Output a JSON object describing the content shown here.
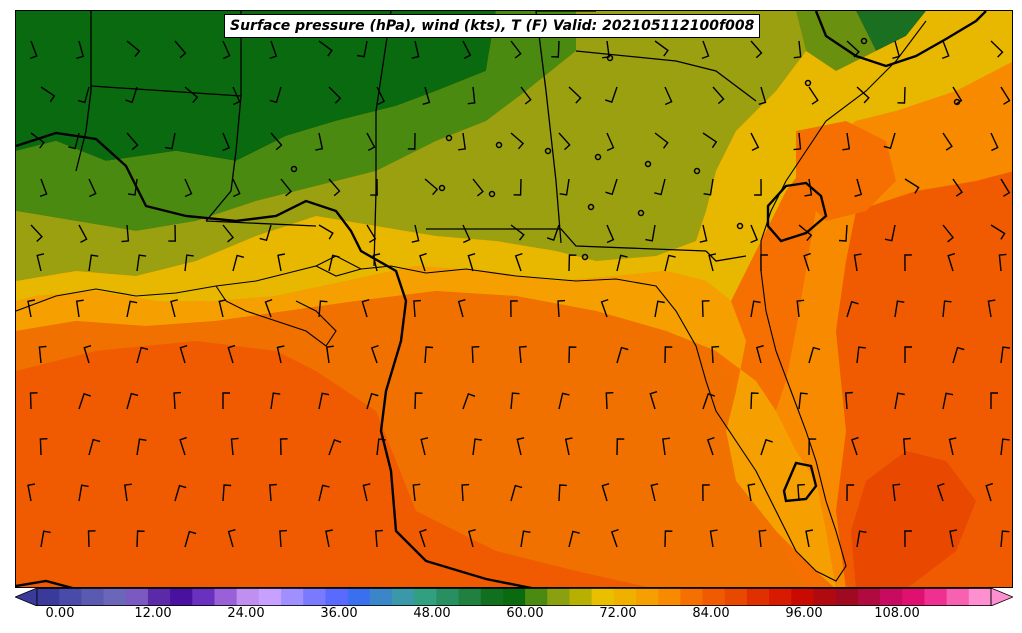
{
  "title": "Surface pressure (hPa), wind (kts), T (F) Valid: 202105112100f008",
  "colorbar": {
    "tick_labels": [
      "0.00",
      "12.00",
      "24.00",
      "36.00",
      "48.00",
      "60.00",
      "72.00",
      "84.00",
      "96.00",
      "108.00"
    ],
    "colors": [
      "#3a3a9a",
      "#4a4aa8",
      "#5a5ab0",
      "#6a66b8",
      "#7a5ac0",
      "#5a2aa8",
      "#4a10a0",
      "#6a30c0",
      "#9a60d8",
      "#c090f0",
      "#c8a0ff",
      "#a090ff",
      "#7a7aff",
      "#5a6aff",
      "#3a70f0",
      "#3a86c8",
      "#3a98a8",
      "#30a080",
      "#289060",
      "#208040",
      "#107020",
      "#0a6a10",
      "#4a8a10",
      "#8aa010",
      "#b8b000",
      "#e8c000",
      "#f0b000",
      "#f5a000",
      "#f88a00",
      "#f57000",
      "#f05a00",
      "#e84800",
      "#e03000",
      "#d81a00",
      "#c80a00",
      "#b00a10",
      "#a00a20",
      "#b00a40",
      "#c80a60",
      "#e01070",
      "#f03090",
      "#f860b0",
      "#ff90d0"
    ]
  },
  "temperature_zones": [
    "#0a6a10",
    "#4a8a10",
    "#8aa010",
    "#e8c000",
    "#f5a000",
    "#f88a00",
    "#f57000",
    "#f05a00",
    "#e84800"
  ]
}
